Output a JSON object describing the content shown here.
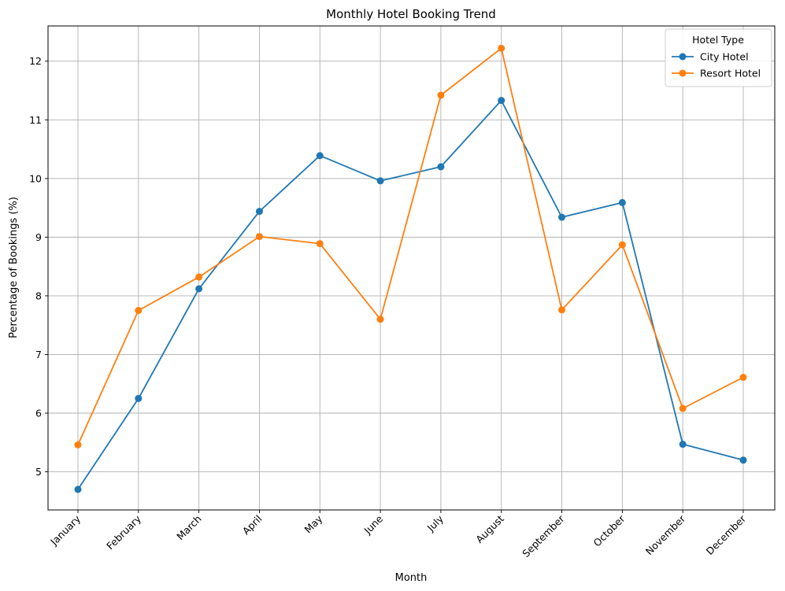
{
  "chart_data": {
    "type": "line",
    "title": "Monthly Hotel Booking Trend",
    "xlabel": "Month",
    "ylabel": "Percentage of Bookings (%)",
    "categories": [
      "January",
      "February",
      "March",
      "April",
      "May",
      "June",
      "July",
      "August",
      "September",
      "October",
      "November",
      "December"
    ],
    "yticks": [
      5,
      6,
      7,
      8,
      9,
      10,
      11,
      12
    ],
    "ylim": [
      4.35,
      12.6
    ],
    "grid": true,
    "legend": {
      "title": "Hotel Type",
      "placement": "top-right"
    },
    "series": [
      {
        "name": "City Hotel",
        "color": "#1f77b4",
        "values": [
          4.7,
          6.25,
          8.12,
          9.44,
          10.39,
          9.96,
          10.2,
          11.33,
          9.34,
          9.59,
          5.47,
          5.2
        ]
      },
      {
        "name": "Resort Hotel",
        "color": "#ff7f0e",
        "values": [
          5.46,
          7.75,
          8.32,
          9.01,
          8.89,
          7.6,
          11.42,
          12.22,
          7.76,
          8.87,
          6.08,
          6.61
        ]
      }
    ]
  }
}
